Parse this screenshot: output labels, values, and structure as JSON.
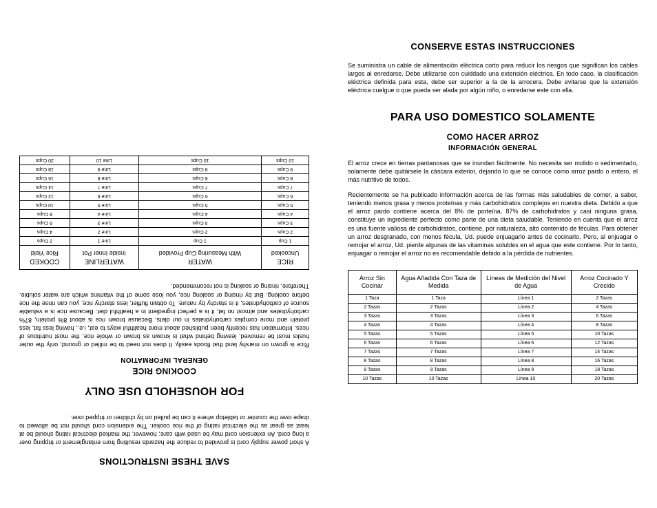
{
  "left": {
    "title1": "SAVE THESE INSTRUCTIONS",
    "para1": "A short power supply cord is provided to reduce the hazards resulting from entanglement or tripping over a long cord. An extension cord may be used with care; however, the marked electrical rating should be at least as great as the electrical rating of the rice cooker. The extension cord should not be allowed to drape over the counter or tabletop where it can be pulled on by children or tripped over.",
    "title2": "FOR HOUSEHOLD USE ONLY",
    "title3": "COOKING RICE",
    "title4": "GENERAL INFORMATION",
    "para2": "Rice is grown on marshy land that floods easily. It does not need to be milled or ground; only the outer husks must be removed, leaving behind what is known as brown or whole rice, the most nutritious of rices. Information has recently been published about more healthful ways to eat, i.e., having less fat, less protein and more complex carbohydrates in our diets. Because brown rice is about 8% protein, 87% carbohydrates and almost no fat, it is a perfect ingredient in a healthful diet. Because rice is a valuable source of carbohydrates, it is starchy by nature. To obtain fluffier, less starchy rice, you can rinse the rice before cooking. But by rinsing or soaking rice, you lose some of the vitamins which are water soluble. Therefore, rinsing or soaking is not recommended.",
    "table": {
      "headers": [
        {
          "main": "RICE",
          "sub": "Uncooked"
        },
        {
          "main": "WATER",
          "sub": "With Measuring Cup Provided"
        },
        {
          "main": "WATERLINE",
          "sub": "Inside Inner Pot"
        },
        {
          "main": "COOKED",
          "sub": "Rice Yield"
        }
      ],
      "rows": [
        [
          "1 Cup",
          "1 Cup",
          "Line 1",
          "2 Cups"
        ],
        [
          "2 Cups",
          "2 Cups",
          "Line 2",
          "4 Cups"
        ],
        [
          "3 Cups",
          "3 Cups",
          "Line 3",
          "6 Cups"
        ],
        [
          "4 Cups",
          "4 Cups",
          "Line 4",
          "8 Cups"
        ],
        [
          "5 Cups",
          "5 Cups",
          "Line 5",
          "10 Cups"
        ],
        [
          "6 Cups",
          "6 Cups",
          "Line 6",
          "12 Cups"
        ],
        [
          "7 Cups",
          "7 Cups",
          "Line 7",
          "14 Cups"
        ],
        [
          "8 Cups",
          "8 Cups",
          "Line 8",
          "16 Cups"
        ],
        [
          "9 Cups",
          "9 Cups",
          "Line 9",
          "18 Cups"
        ],
        [
          "10 Cups",
          "10 Cups",
          "Line 10",
          "20 Cups"
        ]
      ]
    }
  },
  "right": {
    "title1": "CONSERVE ESTAS INSTRUCCIONES",
    "para1": "Se suministra un cable de alimentación eléctrica corto para reducir los riesgos que significan los cables largos al enredarse. Debe utilizarse con cuiddado una extensión eléctrica. En todo caso, la clasificación eléctrica definida para esta, debe ser superior a la de la arrocera. Debe evitarse que la extensión eléctrica cuelgue o que pueda ser alada por algún niño, o enredarse este con ella.",
    "title2": "PARA USO DOMESTICO SOLAMENTE",
    "title3": "COMO HACER ARROZ",
    "title4": "INFORMACIÓN GENERAL",
    "para2": "El arroz crece en tierras pantanosas que se inundan fácilmente. No necesita ser molido o sedimentado, solamente debe quitársele la cáscara exterior, dejando lo que se conoce como arroz pardo o entero, el más nutritivo de todos.",
    "para3": "Recientemente se ha publicado información acerca de las formas más saludables de comer, a saber, teniendo menos grasa y menos proteínas y más carbohidratos complejos en nuestra dieta. Debido a que el arroz pardo contiene acerca del 8% de porteína, 87% de carbohidratos y casi ninguna grasa, constituye un ingrediente perfecto como parte de una dieta saludable. Teniendo en cuenta que el arroz es una fuente valiosa de carbohidratos, contiene, por naturaleza, alto contenido de féculas. Para obtener un arroz desgranado, con menos fécula, Ud. puede enjuagarlo antes de cocinarlo. Pero, al enjuagar o remojar el arroz, Ud. pierde algunas de las vitaminas solubles en el agua que este contiene. Por lo tanto, enjuagar o remojar el arroz no es recomendable debido a la pérdida de nutrientes.",
    "table": {
      "headers": [
        "Arroz Sin Cocinar",
        "Agua Añadida Con Taza de Medida",
        "Líneas de Medición del Nivel de Agua",
        "Arroz Cocinado Y Crecido"
      ],
      "rows": [
        [
          "1 Taza",
          "1 Taza",
          "Línea 1",
          "2 Tazas"
        ],
        [
          "2 Tazas",
          "2 Tazas",
          "Línea 2",
          "4 Tazas"
        ],
        [
          "3 Tazas",
          "3 Tazas",
          "Línea 3",
          "6 Tazas"
        ],
        [
          "4 Tazas",
          "4 Tazas",
          "Línea 4",
          "8 Tazas"
        ],
        [
          "5 Tazas",
          "5 Tazas",
          "Línea 5",
          "10 Tazas"
        ],
        [
          "6 Tazas",
          "6 Tazas",
          "Línea 6",
          "12 Tazas"
        ],
        [
          "7 Tazas",
          "7 Tazas",
          "Línea 7",
          "14 Tazas"
        ],
        [
          "8 Tazas",
          "8 Tazas",
          "Línea 8",
          "16 Tazas"
        ],
        [
          "9 Tazas",
          "9 Tazas",
          "Línea 9",
          "18 Tazas"
        ],
        [
          "10 Tazas",
          "10 Tazas",
          "Línea 10",
          "20 Tazas"
        ]
      ]
    }
  }
}
